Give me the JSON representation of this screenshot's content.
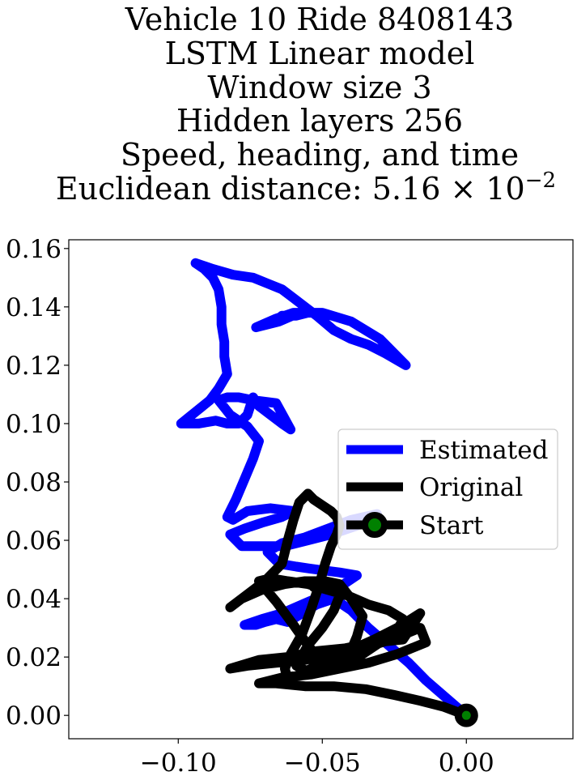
{
  "chart_data": {
    "type": "line",
    "title_lines": [
      "Vehicle 10 Ride 8408143",
      "LSTM Linear model",
      "Window size 3",
      "Hidden layers 256",
      "Speed, heading, and time",
      "Euclidean distance: 5.16 × 10"
    ],
    "title_exponent": "−2",
    "xlim": [
      -0.138,
      0.037
    ],
    "ylim": [
      -0.008,
      0.163
    ],
    "xticks": [
      -0.1,
      -0.05,
      0.0
    ],
    "xtick_labels": [
      "−0.10",
      "−0.05",
      "0.00"
    ],
    "yticks": [
      0.0,
      0.02,
      0.04,
      0.06,
      0.08,
      0.1,
      0.12,
      0.14,
      0.16
    ],
    "ytick_labels": [
      "0.00",
      "0.02",
      "0.04",
      "0.06",
      "0.08",
      "0.10",
      "0.12",
      "0.14",
      "0.16"
    ],
    "legend_position": "center-right",
    "series": [
      {
        "name": "Estimated",
        "color": "#0000ff",
        "x": [
          0.0,
          -0.007,
          -0.014,
          -0.02,
          -0.027,
          -0.034,
          -0.04,
          -0.046,
          -0.052,
          -0.057,
          -0.062,
          -0.066,
          -0.07,
          -0.073,
          -0.077,
          -0.071,
          -0.064,
          -0.057,
          -0.05,
          -0.044,
          -0.038,
          -0.044,
          -0.052,
          -0.059,
          -0.065,
          -0.069,
          -0.064,
          -0.056,
          -0.048,
          -0.04,
          -0.031,
          -0.038,
          -0.047,
          -0.055,
          -0.063,
          -0.071,
          -0.078,
          -0.082,
          -0.077,
          -0.071,
          -0.064,
          -0.06,
          -0.068,
          -0.076,
          -0.081,
          -0.083,
          -0.08,
          -0.077,
          -0.074,
          -0.072,
          -0.076,
          -0.082,
          -0.086,
          -0.083,
          -0.079,
          -0.074,
          -0.066,
          -0.061,
          -0.064,
          -0.068,
          -0.072,
          -0.074,
          -0.076,
          -0.079,
          -0.083,
          -0.087,
          -0.093,
          -0.099,
          -0.094,
          -0.089,
          -0.086,
          -0.083,
          -0.084,
          -0.084,
          -0.085,
          -0.085,
          -0.086,
          -0.088,
          -0.091,
          -0.094,
          -0.088,
          -0.081,
          -0.074,
          -0.069,
          -0.064,
          -0.06,
          -0.056,
          -0.052,
          -0.046,
          -0.04,
          -0.034,
          -0.028,
          -0.021,
          -0.03,
          -0.04,
          -0.05,
          -0.058,
          -0.065,
          -0.073,
          -0.066,
          -0.06,
          -0.055,
          -0.059,
          -0.064
        ],
        "y": [
          0.0,
          0.006,
          0.012,
          0.018,
          0.024,
          0.03,
          0.036,
          0.04,
          0.038,
          0.035,
          0.032,
          0.033,
          0.032,
          0.031,
          0.031,
          0.033,
          0.035,
          0.038,
          0.041,
          0.044,
          0.048,
          0.049,
          0.05,
          0.051,
          0.052,
          0.056,
          0.059,
          0.061,
          0.064,
          0.067,
          0.069,
          0.065,
          0.062,
          0.06,
          0.058,
          0.058,
          0.058,
          0.062,
          0.064,
          0.066,
          0.068,
          0.07,
          0.071,
          0.07,
          0.067,
          0.068,
          0.074,
          0.081,
          0.088,
          0.094,
          0.099,
          0.103,
          0.108,
          0.109,
          0.109,
          0.108,
          0.107,
          0.098,
          0.1,
          0.103,
          0.106,
          0.109,
          0.103,
          0.1,
          0.1,
          0.101,
          0.1,
          0.1,
          0.104,
          0.108,
          0.112,
          0.117,
          0.123,
          0.128,
          0.134,
          0.14,
          0.146,
          0.15,
          0.153,
          0.155,
          0.153,
          0.151,
          0.15,
          0.148,
          0.146,
          0.143,
          0.14,
          0.137,
          0.132,
          0.129,
          0.127,
          0.124,
          0.12,
          0.129,
          0.135,
          0.138,
          0.138,
          0.135,
          0.133,
          0.136,
          0.138,
          0.138,
          0.137,
          0.137
        ]
      },
      {
        "name": "Original",
        "color": "#000000",
        "x": [
          0.0,
          -0.008,
          -0.016,
          -0.025,
          -0.035,
          -0.046,
          -0.056,
          -0.066,
          -0.072,
          -0.064,
          -0.054,
          -0.044,
          -0.034,
          -0.024,
          -0.014,
          -0.016,
          -0.026,
          -0.036,
          -0.046,
          -0.056,
          -0.066,
          -0.076,
          -0.082,
          -0.072,
          -0.062,
          -0.052,
          -0.042,
          -0.032,
          -0.022,
          -0.016,
          -0.024,
          -0.032,
          -0.041,
          -0.05,
          -0.058,
          -0.062,
          -0.063,
          -0.061,
          -0.057,
          -0.054,
          -0.051,
          -0.049,
          -0.047,
          -0.045,
          -0.044,
          -0.045,
          -0.047,
          -0.05,
          -0.053,
          -0.055,
          -0.056,
          -0.058,
          -0.06,
          -0.062,
          -0.064,
          -0.07,
          -0.078,
          -0.082,
          -0.078,
          -0.071,
          -0.063,
          -0.056,
          -0.05,
          -0.047,
          -0.044,
          -0.046,
          -0.05,
          -0.055,
          -0.059,
          -0.055,
          -0.048,
          -0.042,
          -0.036,
          -0.03,
          -0.024,
          -0.022,
          -0.027,
          -0.034,
          -0.041,
          -0.048,
          -0.055,
          -0.062,
          -0.068,
          -0.072,
          -0.066,
          -0.06,
          -0.055,
          -0.05,
          -0.046,
          -0.041,
          -0.038,
          -0.036,
          -0.04,
          -0.044,
          -0.049,
          -0.053
        ],
        "y": [
          0.0,
          0.003,
          0.005,
          0.007,
          0.009,
          0.01,
          0.01,
          0.011,
          0.011,
          0.013,
          0.014,
          0.016,
          0.018,
          0.021,
          0.025,
          0.03,
          0.026,
          0.023,
          0.021,
          0.019,
          0.018,
          0.017,
          0.016,
          0.019,
          0.02,
          0.022,
          0.023,
          0.025,
          0.026,
          0.035,
          0.03,
          0.026,
          0.022,
          0.018,
          0.014,
          0.012,
          0.016,
          0.021,
          0.028,
          0.036,
          0.045,
          0.052,
          0.058,
          0.062,
          0.065,
          0.068,
          0.07,
          0.072,
          0.074,
          0.076,
          0.075,
          0.073,
          0.067,
          0.06,
          0.052,
          0.046,
          0.04,
          0.037,
          0.04,
          0.043,
          0.045,
          0.046,
          0.046,
          0.044,
          0.041,
          0.036,
          0.03,
          0.024,
          0.017,
          0.015,
          0.016,
          0.018,
          0.021,
          0.025,
          0.029,
          0.033,
          0.036,
          0.038,
          0.041,
          0.043,
          0.045,
          0.046,
          0.047,
          0.046,
          0.039,
          0.031,
          0.024,
          0.018,
          0.016,
          0.02,
          0.027,
          0.034,
          0.04,
          0.045,
          0.046,
          0.044
        ]
      },
      {
        "name": "Start",
        "color": "#000000",
        "marker_face": "#008000",
        "x": [
          0.0
        ],
        "y": [
          0.0
        ]
      }
    ]
  }
}
